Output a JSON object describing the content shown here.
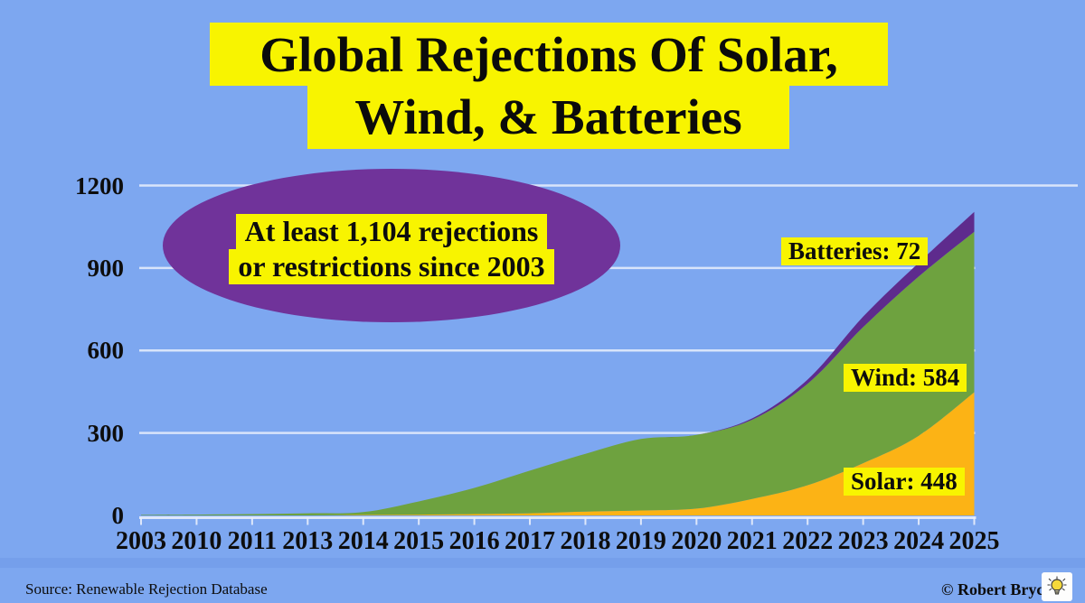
{
  "title": {
    "line1": "Global Rejections Of Solar,",
    "line2": "Wind, & Batteries"
  },
  "annotation": {
    "line1": "At least 1,104 rejections",
    "line2": "or restrictions since 2003"
  },
  "series_labels": {
    "batteries": "Batteries: 72",
    "wind": "Wind: 584",
    "solar": "Solar: 448"
  },
  "footer": {
    "source": "Source: Renewable Rejection Database",
    "copyright": "© Robert Bryce",
    "icon": "lightbulb-icon"
  },
  "colors": {
    "background": "#7da7f0",
    "title_highlight": "#f8f400",
    "ellipse_purple": "#70339a",
    "batteries_purple": "#5e2b8d",
    "wind_green": "#6ea23f",
    "solar_orange": "#fcb315",
    "grid_line": "#e9effc",
    "text": "#0d0d0d"
  },
  "chart_data": {
    "type": "area",
    "stacked": true,
    "title": "Global Rejections Of Solar, Wind, & Batteries",
    "x": [
      "2003",
      "2010",
      "2011",
      "2013",
      "2014",
      "2015",
      "2016",
      "2017",
      "2018",
      "2019",
      "2020",
      "2021",
      "2022",
      "2023",
      "2024",
      "2025"
    ],
    "series": [
      {
        "name": "Solar",
        "color": "#fcb315",
        "values": [
          0,
          0,
          0,
          0,
          2,
          3,
          5,
          8,
          14,
          18,
          25,
          60,
          110,
          190,
          290,
          448
        ]
      },
      {
        "name": "Wind",
        "color": "#6ea23f",
        "values": [
          2,
          3,
          5,
          8,
          10,
          48,
          95,
          155,
          210,
          260,
          268,
          288,
          369,
          495,
          579,
          584
        ]
      },
      {
        "name": "Batteries",
        "color": "#5e2b8d",
        "values": [
          0,
          0,
          0,
          0,
          0,
          0,
          0,
          0,
          0,
          0,
          0,
          5,
          15,
          38,
          50,
          72
        ]
      }
    ],
    "yticks": [
      0,
      300,
      600,
      900,
      1200
    ],
    "ylim": [
      0,
      1200
    ],
    "grid": true,
    "legend_position": "inline-labels",
    "final_values": {
      "Solar": 448,
      "Wind": 584,
      "Batteries": 72
    },
    "total_note": "At least 1,104 rejections or restrictions since 2003"
  }
}
